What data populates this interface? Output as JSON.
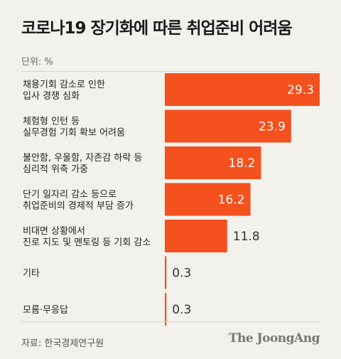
{
  "chart_data": {
    "type": "bar",
    "orientation": "horizontal",
    "title": "코로나19 장기화에 따른 취업준비 어려움",
    "unit_label": "단위: %",
    "categories": [
      [
        "채용기회 감소로 인한",
        "입사 경쟁 심화"
      ],
      [
        "체험형 인턴 등",
        "실무경험 기회 확보 어려움"
      ],
      [
        "불안함, 우울함, 자존감 하락 등",
        "심리적 위축 가중"
      ],
      [
        "단기 일자리 감소 등으로",
        "취업준비의 경제적 부담 증가"
      ],
      [
        "비대면 상황에서",
        "진로 지도 및 멘토링 등 기회 감소"
      ],
      [
        "기타"
      ],
      [
        "모름·무응답"
      ]
    ],
    "values": [
      29.3,
      23.9,
      18.2,
      16.2,
      11.8,
      0.3,
      0.3
    ],
    "value_labels": [
      "29.3",
      "23.9",
      "18.2",
      "16.2",
      "11.8",
      "0.3",
      "0.3"
    ],
    "xlim": [
      0,
      29.3
    ],
    "bar_color": "#f4511e",
    "grid": false
  },
  "footer": {
    "source": "자료: 한국경제연구원",
    "logo": "The JoongAng"
  }
}
